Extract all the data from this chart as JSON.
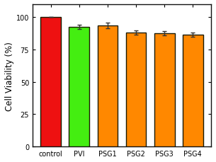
{
  "categories": [
    "control",
    "PVI",
    "PSG1",
    "PSG2",
    "PSG3",
    "PSG4"
  ],
  "values": [
    100.0,
    92.5,
    93.5,
    88.0,
    87.5,
    86.5
  ],
  "errors": [
    0.0,
    1.5,
    2.0,
    1.8,
    1.8,
    1.5
  ],
  "bar_colors": [
    "#ee1111",
    "#44ee11",
    "#ff8800",
    "#ff8800",
    "#ff8800",
    "#ff8800"
  ],
  "bar_edgecolor": "#1a1a00",
  "bar_linewidth": 1.0,
  "ylabel": "Cell Viability (%)",
  "ylim": [
    0,
    110
  ],
  "yticks": [
    0,
    25,
    50,
    75,
    100
  ],
  "background_color": "#ffffff",
  "error_capsize": 2.5,
  "error_color": "#333333",
  "error_linewidth": 1.0,
  "bar_width": 0.72,
  "ylabel_fontsize": 8.5,
  "tick_fontsize": 7.0,
  "xlabel_fontsize": 7.0
}
